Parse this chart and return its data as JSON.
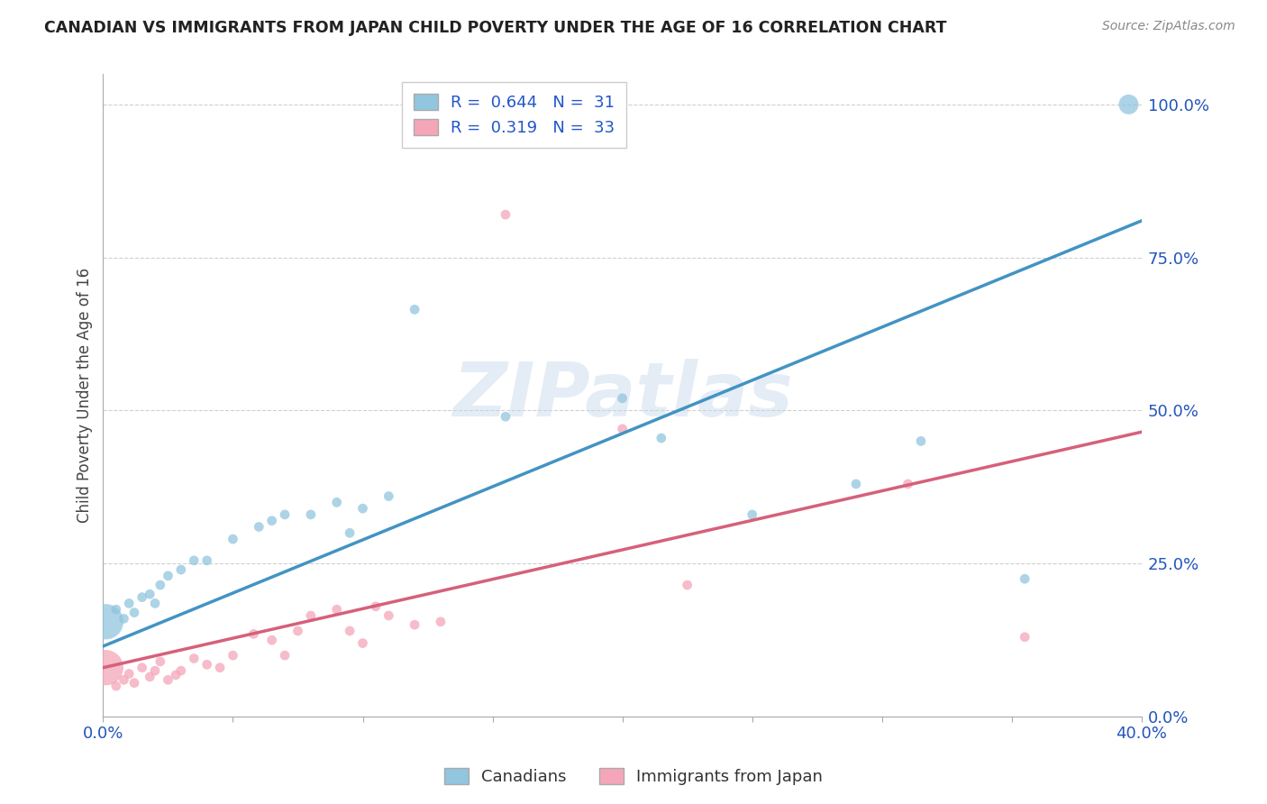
{
  "title": "CANADIAN VS IMMIGRANTS FROM JAPAN CHILD POVERTY UNDER THE AGE OF 16 CORRELATION CHART",
  "source": "Source: ZipAtlas.com",
  "ylabel": "Child Poverty Under the Age of 16",
  "xlim": [
    0.0,
    0.4
  ],
  "ylim": [
    0.0,
    1.05
  ],
  "ytick_labels": [
    "0.0%",
    "25.0%",
    "50.0%",
    "75.0%",
    "100.0%"
  ],
  "ytick_values": [
    0.0,
    0.25,
    0.5,
    0.75,
    1.0
  ],
  "xtick_show": [
    0.0,
    0.4
  ],
  "xtick_labels_show": [
    "0.0%",
    "40.0%"
  ],
  "xtick_minor": [
    0.05,
    0.1,
    0.15,
    0.2,
    0.25,
    0.3,
    0.35
  ],
  "watermark": "ZIPatlas",
  "canadians_color": "#92c5de",
  "immigrants_color": "#f4a6b8",
  "trendline_canadian_color": "#4393c3",
  "trendline_immigrant_color": "#d6607a",
  "R_canadian": "0.644",
  "N_canadian": "31",
  "R_immigrant": "0.319",
  "N_immigrant": "33",
  "canadians_x": [
    0.001,
    0.005,
    0.008,
    0.01,
    0.012,
    0.015,
    0.018,
    0.02,
    0.022,
    0.025,
    0.03,
    0.035,
    0.04,
    0.05,
    0.06,
    0.065,
    0.07,
    0.08,
    0.09,
    0.095,
    0.1,
    0.11,
    0.12,
    0.155,
    0.2,
    0.215,
    0.25,
    0.29,
    0.315,
    0.355,
    0.395
  ],
  "canadians_y": [
    0.155,
    0.175,
    0.16,
    0.185,
    0.17,
    0.195,
    0.2,
    0.185,
    0.215,
    0.23,
    0.24,
    0.255,
    0.255,
    0.29,
    0.31,
    0.32,
    0.33,
    0.33,
    0.35,
    0.3,
    0.34,
    0.36,
    0.665,
    0.49,
    0.52,
    0.455,
    0.33,
    0.38,
    0.45,
    0.225,
    1.0
  ],
  "canadians_size": [
    800,
    60,
    60,
    60,
    60,
    60,
    60,
    60,
    60,
    60,
    60,
    60,
    60,
    60,
    60,
    60,
    60,
    60,
    60,
    60,
    60,
    60,
    60,
    60,
    60,
    60,
    60,
    60,
    60,
    60,
    250
  ],
  "immigrants_x": [
    0.001,
    0.005,
    0.008,
    0.01,
    0.012,
    0.015,
    0.018,
    0.02,
    0.022,
    0.025,
    0.028,
    0.03,
    0.035,
    0.04,
    0.045,
    0.05,
    0.058,
    0.065,
    0.07,
    0.075,
    0.08,
    0.09,
    0.095,
    0.1,
    0.105,
    0.11,
    0.12,
    0.13,
    0.155,
    0.2,
    0.225,
    0.31,
    0.355
  ],
  "immigrants_y": [
    0.08,
    0.05,
    0.06,
    0.07,
    0.055,
    0.08,
    0.065,
    0.075,
    0.09,
    0.06,
    0.068,
    0.075,
    0.095,
    0.085,
    0.08,
    0.1,
    0.135,
    0.125,
    0.1,
    0.14,
    0.165,
    0.175,
    0.14,
    0.12,
    0.18,
    0.165,
    0.15,
    0.155,
    0.82,
    0.47,
    0.215,
    0.38,
    0.13
  ],
  "immigrants_size": [
    800,
    60,
    60,
    60,
    60,
    60,
    60,
    60,
    60,
    60,
    60,
    60,
    60,
    60,
    60,
    60,
    60,
    60,
    60,
    60,
    60,
    60,
    60,
    60,
    60,
    60,
    60,
    60,
    60,
    60,
    60,
    60,
    60
  ],
  "background_color": "#ffffff",
  "grid_color": "#d0d0d0",
  "trendline_start_x": 0.0,
  "trendline_end_x": 0.4,
  "canadian_trend_y0": 0.115,
  "canadian_trend_y1": 0.81,
  "immigrant_trend_y0": 0.08,
  "immigrant_trend_y1": 0.465
}
